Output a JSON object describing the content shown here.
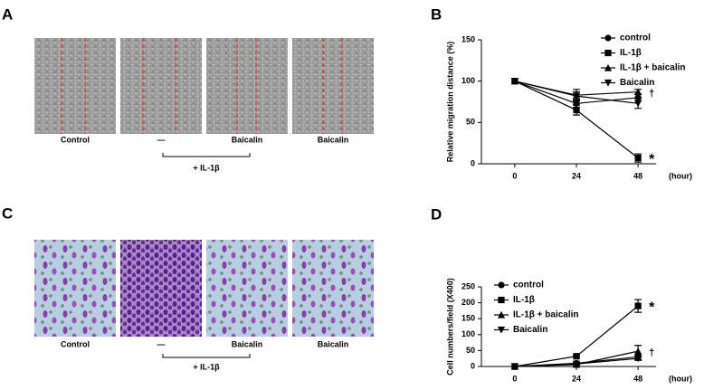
{
  "panels": {
    "A": {
      "label": "A",
      "captions": [
        "Control",
        "—",
        "Baicalin",
        "Baicalin"
      ],
      "bracket": "+ IL-1β"
    },
    "B": {
      "label": "B"
    },
    "C": {
      "label": "C",
      "captions": [
        "Control",
        "—",
        "Baicalin",
        "Baicalin"
      ],
      "bracket": "+ IL-1β"
    },
    "D": {
      "label": "D"
    }
  },
  "chart_data": [
    {
      "type": "line",
      "ylabel": "Relative migration distance (%)",
      "xlabel": "(hour)",
      "x": [
        0,
        24,
        48
      ],
      "xlim": [
        -13,
        55
      ],
      "xticks": [
        0,
        24,
        48
      ],
      "ylim": [
        0,
        150
      ],
      "yticks": [
        0,
        50,
        100,
        150
      ],
      "legend": "upper right",
      "series": [
        {
          "name": "control",
          "marker": "circle",
          "color": "#000000",
          "values": [
            100,
            73,
            80
          ],
          "errors": [
            0,
            5,
            4
          ]
        },
        {
          "name": "IL-1β",
          "marker": "square",
          "color": "#000000",
          "values": [
            100,
            65,
            7
          ],
          "errors": [
            0,
            6,
            5
          ],
          "annotation": "*"
        },
        {
          "name": "IL-1β + baicalin",
          "marker": "triangle-up",
          "color": "#000000",
          "values": [
            100,
            83,
            87
          ],
          "errors": [
            0,
            7,
            3
          ],
          "annotation": "†"
        },
        {
          "name": "Baicalin",
          "marker": "triangle-down",
          "color": "#000000",
          "values": [
            100,
            82,
            73
          ],
          "errors": [
            0,
            5,
            6
          ]
        }
      ]
    },
    {
      "type": "line",
      "ylabel": "Cell numbers/field (X400)",
      "xlabel": "(hour)",
      "x": [
        0,
        24,
        48
      ],
      "xlim": [
        -13,
        55
      ],
      "xticks": [
        0,
        24,
        48
      ],
      "ylim": [
        0,
        250
      ],
      "yticks": [
        0,
        50,
        100,
        150,
        200,
        250
      ],
      "legend": "upper left",
      "series": [
        {
          "name": "control",
          "marker": "circle",
          "color": "#000000",
          "values": [
            0,
            10,
            30
          ],
          "errors": [
            0,
            2,
            8
          ]
        },
        {
          "name": "IL-1β",
          "marker": "square",
          "color": "#000000",
          "values": [
            0,
            32,
            190
          ],
          "errors": [
            0,
            3,
            20
          ],
          "annotation": "*"
        },
        {
          "name": "IL-1β + baicalin",
          "marker": "triangle-up",
          "color": "#000000",
          "values": [
            0,
            6,
            48
          ],
          "errors": [
            0,
            2,
            18
          ],
          "annotation": "†"
        },
        {
          "name": "Baicalin",
          "marker": "triangle-down",
          "color": "#000000",
          "values": [
            0,
            8,
            25
          ],
          "errors": [
            0,
            2,
            6
          ]
        }
      ]
    }
  ]
}
